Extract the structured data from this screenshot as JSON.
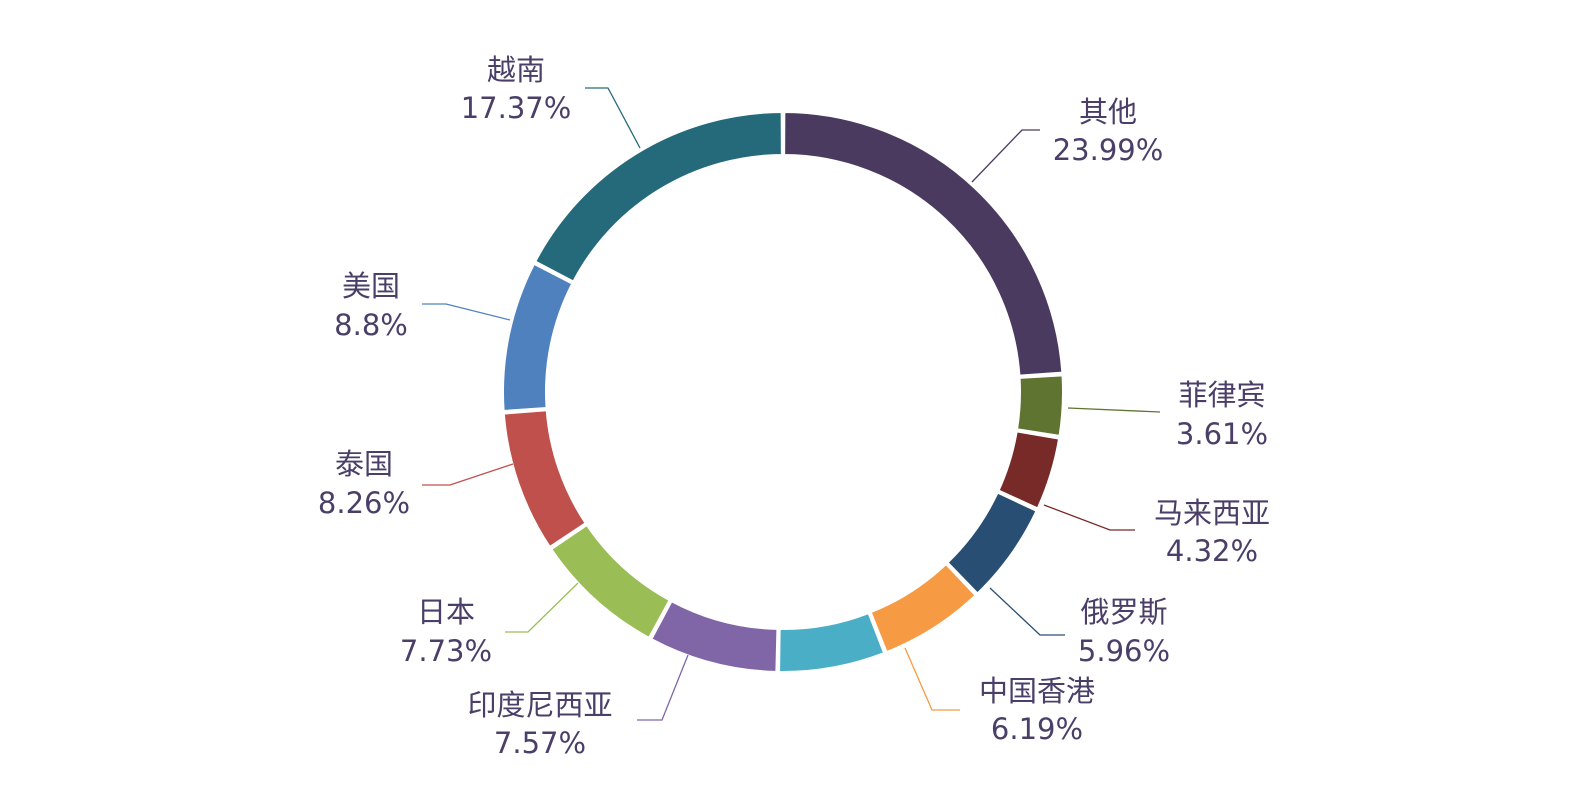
{
  "chart_data": {
    "type": "pie",
    "variant": "donut",
    "unit": "%",
    "label_color": "#4b3f69",
    "legend": "none",
    "slices": [
      {
        "label": "其他",
        "value": 23.99,
        "value_label": "23.99%",
        "color": "#4b3a60"
      },
      {
        "label": "菲律宾",
        "value": 3.61,
        "value_label": "3.61%",
        "color": "#5f7430"
      },
      {
        "label": "马来西亚",
        "value": 4.32,
        "value_label": "4.32%",
        "color": "#772a28"
      },
      {
        "label": "俄罗斯",
        "value": 5.96,
        "value_label": "5.96%",
        "color": "#294e73"
      },
      {
        "label": "中国香港",
        "value": 6.19,
        "value_label": "6.19%",
        "color": "#f79a44"
      },
      {
        "label": "",
        "value": 6.26,
        "value_label": "",
        "color": "#4aaec7"
      },
      {
        "label": "印度尼西亚",
        "value": 7.57,
        "value_label": "7.57%",
        "color": "#8066a6"
      },
      {
        "label": "日本",
        "value": 7.73,
        "value_label": "7.73%",
        "color": "#9bbd56"
      },
      {
        "label": "泰国",
        "value": 8.26,
        "value_label": "8.26%",
        "color": "#bf504c"
      },
      {
        "label": "美国",
        "value": 8.8,
        "value_label": "8.8%",
        "color": "#4f81be"
      },
      {
        "label": "越南",
        "value": 17.37,
        "value_label": "17.37%",
        "color": "#256a7b"
      }
    ]
  }
}
